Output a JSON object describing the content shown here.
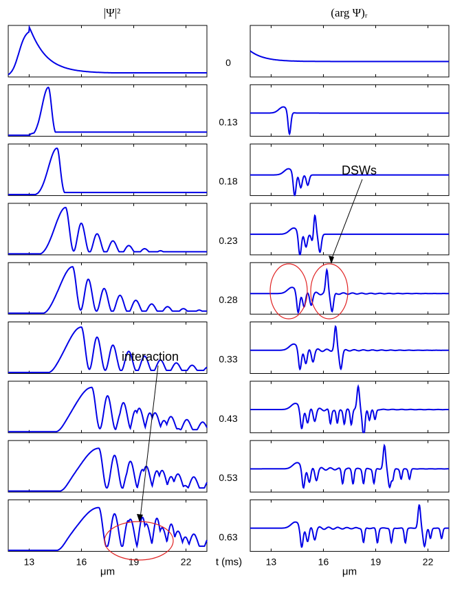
{
  "chart_data": {
    "type": "line",
    "columns": [
      {
        "title": "|Ψ|²",
        "quantity": "density"
      },
      {
        "title": "(arg Ψ)ᵣ",
        "quantity": "phase"
      }
    ],
    "times_ms": [
      "0",
      "0.13",
      "0.18",
      "0.23",
      "0.28",
      "0.33",
      "0.43",
      "0.53",
      "0.63"
    ],
    "time_label": "t (ms)",
    "xlabel": "μm",
    "xlim": [
      11.8,
      23.2
    ],
    "xticks": [
      "13",
      "16",
      "19",
      "22"
    ],
    "xtick_values": [
      13,
      16,
      19,
      22
    ],
    "line_color": "#0000e6",
    "annotations": [
      {
        "text": "DSWs",
        "panel": "phase",
        "time": "0.28",
        "marks": "two circled shock fronts",
        "mark_color": "#e02020"
      },
      {
        "text": "interaction",
        "panel": "density",
        "time": "0.63",
        "marks": "circled overlap region",
        "mark_color": "#e02020"
      }
    ],
    "density": [
      {
        "t": "0",
        "peak_x": 13.0,
        "peak_h": 0.92,
        "tail": 0.06
      },
      {
        "t": "0.13",
        "peak_x": 14.1,
        "peak_h": 0.95,
        "tail": 0.08
      },
      {
        "t": "0.18",
        "peak_x": 14.6,
        "peak_h": 0.92,
        "tail": 0.06
      },
      {
        "t": "0.23",
        "peak_x": 15.1,
        "peak_h": 0.92,
        "tail": 0.06
      },
      {
        "t": "0.28",
        "peak_x": 15.5,
        "peak_h": 0.92,
        "tail": 0.06
      },
      {
        "t": "0.33",
        "peak_x": 16.0,
        "peak_h": 0.9,
        "tail": 0.06
      },
      {
        "t": "0.43",
        "peak_x": 16.6,
        "peak_h": 0.88,
        "tail": 0.06
      },
      {
        "t": "0.53",
        "peak_x": 17.0,
        "peak_h": 0.85,
        "tail": 0.08
      },
      {
        "t": "0.63",
        "peak_x": 17.0,
        "peak_h": 0.85,
        "tail": 0.1
      }
    ],
    "phase": [
      {
        "t": "0",
        "base": 0.3,
        "fronts": []
      },
      {
        "t": "0.13",
        "base": 0.45,
        "fronts": [
          13.9
        ]
      },
      {
        "t": "0.18",
        "base": 0.4,
        "fronts": [
          14.2
        ]
      },
      {
        "t": "0.23",
        "base": 0.4,
        "fronts": [
          14.5,
          15.5
        ]
      },
      {
        "t": "0.28",
        "base": 0.4,
        "fronts": [
          14.4,
          16.2
        ]
      },
      {
        "t": "0.33",
        "base": 0.45,
        "fronts": [
          14.5,
          16.7
        ]
      },
      {
        "t": "0.43",
        "base": 0.45,
        "fronts": [
          14.6,
          18.0
        ]
      },
      {
        "t": "0.53",
        "base": 0.45,
        "fronts": [
          14.7,
          19.5
        ]
      },
      {
        "t": "0.63",
        "base": 0.45,
        "fronts": [
          14.6,
          21.5
        ]
      }
    ]
  }
}
